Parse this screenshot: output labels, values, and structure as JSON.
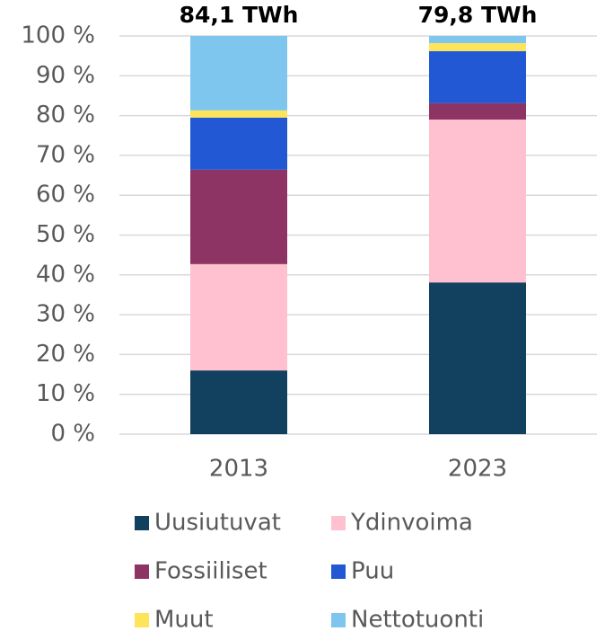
{
  "chart_data": {
    "type": "stacked_bar",
    "categories": [
      "2013",
      "2023"
    ],
    "annotations": [
      "84,1 TWh",
      "79,8 TWh"
    ],
    "series": [
      {
        "name": "Uusiutuvat",
        "color": "#12405f",
        "values": [
          16.0,
          38.1
        ]
      },
      {
        "name": "Ydinvoima",
        "color": "#ffc0cf",
        "values": [
          26.7,
          40.9
        ]
      },
      {
        "name": "Fossiiliset",
        "color": "#8e3464",
        "values": [
          23.7,
          4.1
        ]
      },
      {
        "name": "Puu",
        "color": "#2258d4",
        "values": [
          13.1,
          13.1
        ]
      },
      {
        "name": "Muut",
        "color": "#ffe45a",
        "values": [
          1.8,
          2.0
        ]
      },
      {
        "name": "Nettotuonti",
        "color": "#7fc6ee",
        "values": [
          18.7,
          1.8
        ]
      }
    ],
    "ylim": [
      0,
      100
    ],
    "yticks": [
      {
        "value": 0,
        "label": "0 %"
      },
      {
        "value": 10,
        "label": "10 %"
      },
      {
        "value": 20,
        "label": "20 %"
      },
      {
        "value": 30,
        "label": "30 %"
      },
      {
        "value": 40,
        "label": "40 %"
      },
      {
        "value": 50,
        "label": "50 %"
      },
      {
        "value": 60,
        "label": "60 %"
      },
      {
        "value": 70,
        "label": "70 %"
      },
      {
        "value": 80,
        "label": "80 %"
      },
      {
        "value": 90,
        "label": "90 %"
      },
      {
        "value": 100,
        "label": "100 %"
      }
    ],
    "grid": true
  }
}
